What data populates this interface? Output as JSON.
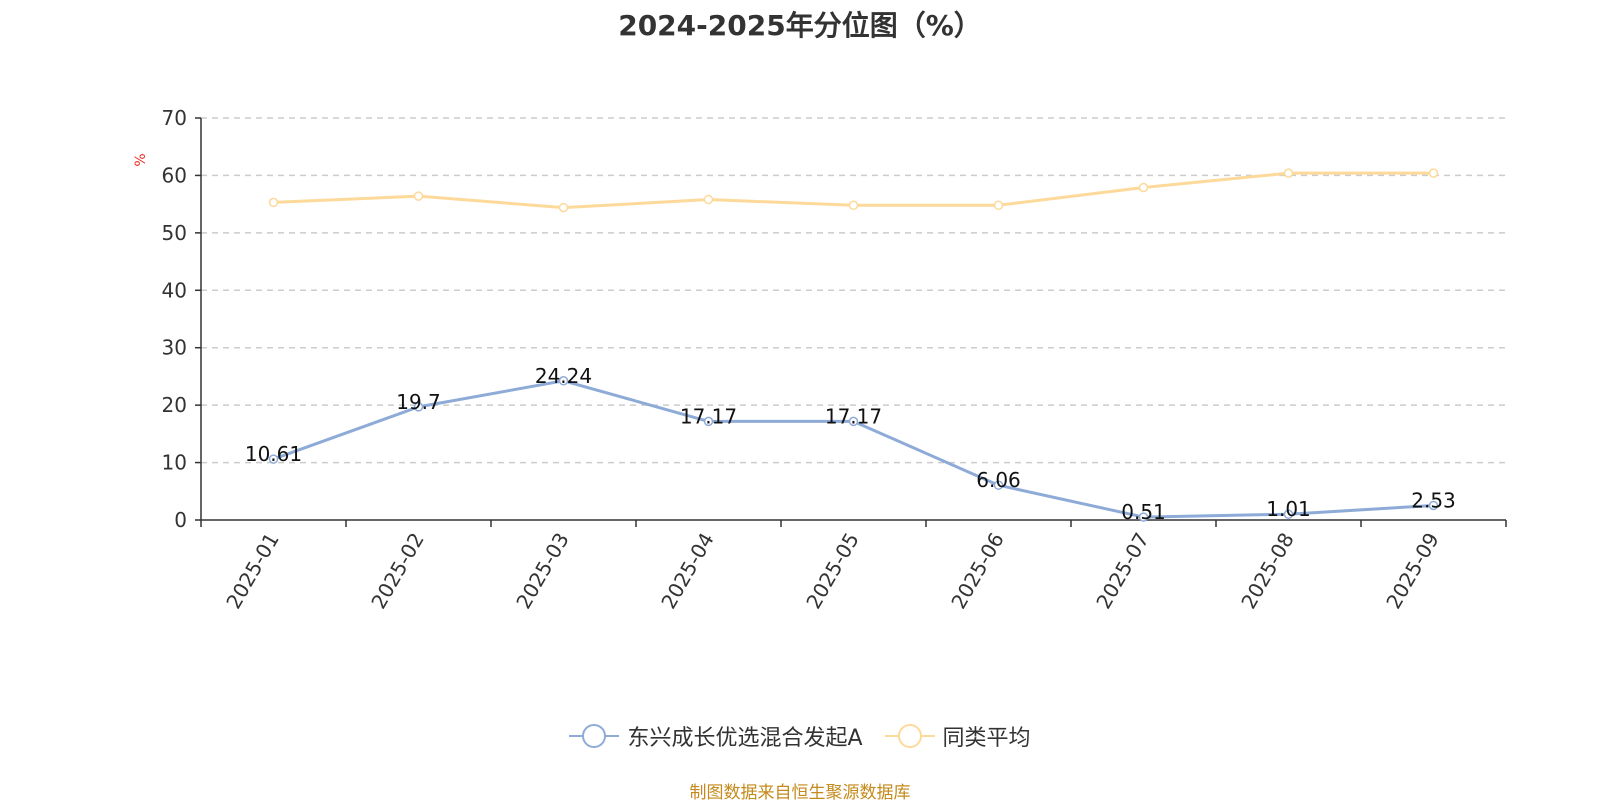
{
  "title": "2024-2025年分位图（%）",
  "source_note": "制图数据来自恒生聚源数据库",
  "colors": {
    "series_0": "#8eabd8",
    "series_1": "#fdd99a",
    "unit": "#e8302a",
    "source": "#c48a1b",
    "grid": "#cccccc",
    "axis": "#333333"
  },
  "chart_data": {
    "type": "line",
    "title": "2024-2025年分位图（%）",
    "ylabel": "%",
    "xlabel": "",
    "ylim": [
      0,
      70
    ],
    "yticks": [
      0,
      10,
      20,
      30,
      40,
      50,
      60,
      70
    ],
    "grid": true,
    "legend_position": "bottom",
    "categories": [
      "2025-01",
      "2025-02",
      "2025-03",
      "2025-04",
      "2025-05",
      "2025-06",
      "2025-07",
      "2025-08",
      "2025-09"
    ],
    "series": [
      {
        "name": "东兴成长优选混合发起A",
        "values": [
          10.61,
          19.7,
          24.24,
          17.17,
          17.17,
          6.06,
          0.51,
          1.01,
          2.53
        ],
        "labels": [
          "10.61",
          "19.7",
          "24.24",
          "17.17",
          "17.17",
          "6.06",
          "0.51",
          "1.01",
          "2.53"
        ]
      },
      {
        "name": "同类平均",
        "values": [
          55.3,
          56.4,
          54.4,
          55.8,
          54.8,
          54.8,
          57.9,
          60.4,
          60.4
        ]
      }
    ]
  }
}
